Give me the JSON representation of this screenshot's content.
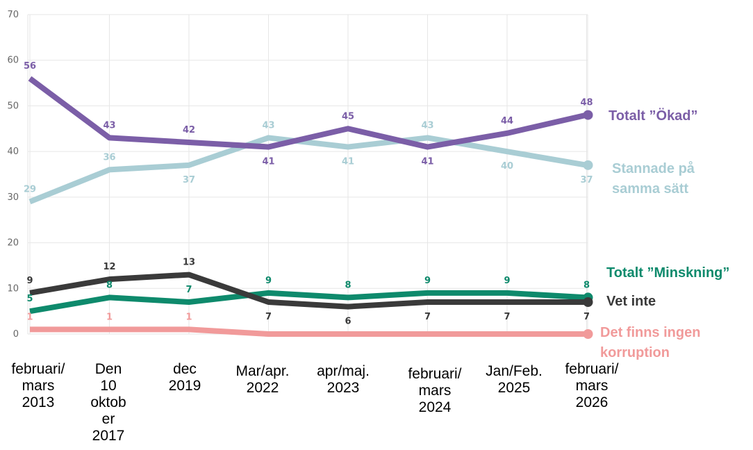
{
  "chart_data": {
    "type": "line",
    "title": "",
    "xlabel": "",
    "ylabel": "",
    "ylim": [
      0,
      70
    ],
    "yticks": [
      0,
      10,
      20,
      30,
      40,
      50,
      60,
      70
    ],
    "grid": true,
    "legend": "right, at line ends",
    "categories": [
      [
        "februari/",
        "mars",
        "2013"
      ],
      [
        "Den",
        "10",
        "oktob",
        "er",
        "2017"
      ],
      [
        "dec",
        "2019"
      ],
      [
        "Mar/apr.",
        "2022"
      ],
      [
        "apr/maj.",
        "2023"
      ],
      [
        "februari/",
        "mars",
        "2024"
      ],
      [
        "Jan/Feb.",
        "2025"
      ],
      [
        "februari/",
        "mars",
        "2026"
      ]
    ],
    "series": [
      {
        "name": "Stannade på samma sätt",
        "legend_lines": [
          "Stannade på",
          "samma sätt"
        ],
        "color": "#a9cdd4",
        "values": [
          29,
          36,
          37,
          43,
          41,
          43,
          40,
          37
        ],
        "labels": [
          "29",
          "36",
          "37",
          "43",
          "41",
          "43",
          "40",
          "37"
        ],
        "label_pos": [
          "above",
          "above",
          "below",
          "above",
          "below",
          "above",
          "below",
          "below"
        ]
      },
      {
        "name": "Totalt ”Ökad”",
        "legend_lines": [
          "Totalt ”Ökad”"
        ],
        "color": "#7b5ea7",
        "values": [
          56,
          43,
          42,
          41,
          45,
          41,
          44,
          48
        ],
        "labels": [
          "56",
          "43",
          "42",
          "41",
          "45",
          "41",
          "44",
          "48"
        ],
        "label_pos": [
          "above",
          "above",
          "above",
          "below",
          "above",
          "below",
          "above",
          "above"
        ]
      },
      {
        "name": "Det finns ingen korruption",
        "legend_lines": [
          "Det finns ingen",
          "korruption"
        ],
        "color": "#f19a9a",
        "values": [
          1,
          1,
          1,
          0,
          0,
          0,
          0,
          0
        ],
        "labels": [
          "1",
          "1",
          "1",
          "",
          "",
          "",
          "",
          ""
        ],
        "label_pos": [
          "above",
          "above",
          "above",
          "above",
          "above",
          "above",
          "above",
          "above"
        ]
      },
      {
        "name": "Totalt ”Minskning”",
        "legend_lines": [
          "Totalt ”Minskning”"
        ],
        "color": "#0e8a6c",
        "values": [
          5,
          8,
          7,
          9,
          8,
          9,
          9,
          8
        ],
        "labels": [
          "5",
          "8",
          "7",
          "9",
          "8",
          "9",
          "9",
          "8"
        ],
        "label_pos": [
          "above",
          "above",
          "above",
          "above",
          "above",
          "above",
          "above",
          "above"
        ]
      },
      {
        "name": "Vet inte",
        "legend_lines": [
          "Vet inte"
        ],
        "color": "#3a3a3a",
        "values": [
          9,
          12,
          13,
          7,
          6,
          7,
          7,
          7
        ],
        "labels": [
          "9",
          "12",
          "13",
          "7",
          "6",
          "7",
          "7",
          "7"
        ],
        "label_pos": [
          "above",
          "above",
          "above",
          "below",
          "below",
          "below",
          "below",
          "below"
        ]
      }
    ]
  }
}
